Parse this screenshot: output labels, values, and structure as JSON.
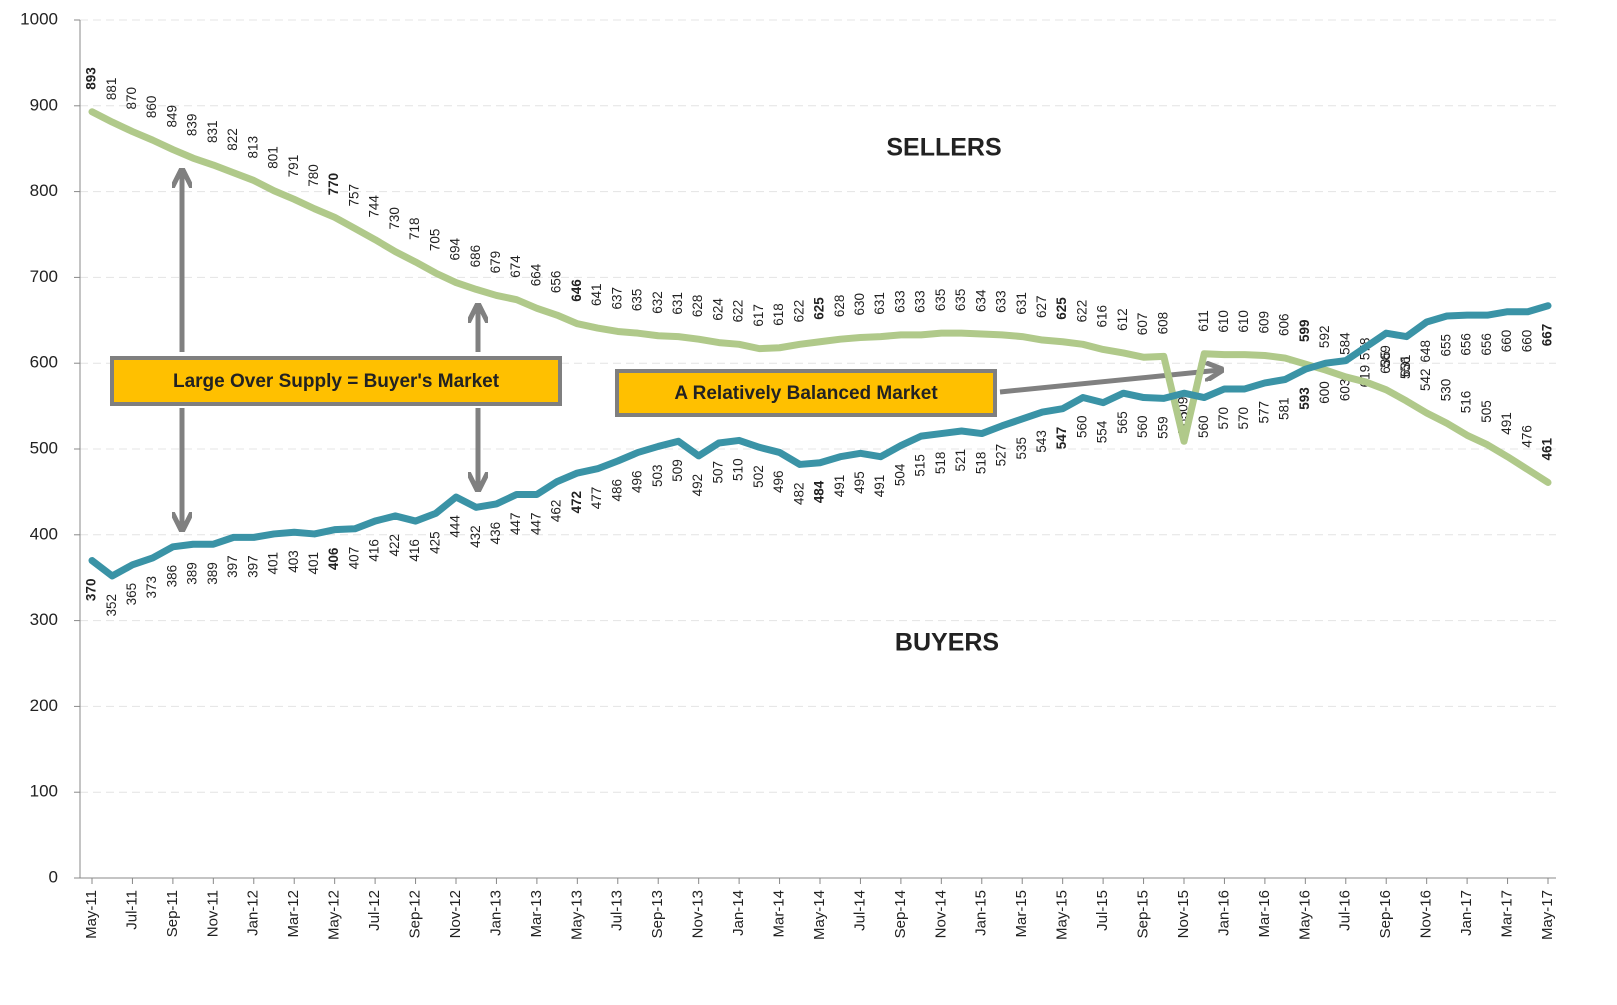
{
  "chart_data": {
    "type": "line",
    "categories": [
      "May-11",
      null,
      "Jul-11",
      null,
      "Sep-11",
      null,
      "Nov-11",
      null,
      "Jan-12",
      null,
      "Mar-12",
      null,
      "May-12",
      null,
      "Jul-12",
      null,
      "Sep-12",
      null,
      "Nov-12",
      null,
      "Jan-13",
      null,
      "Mar-13",
      null,
      "May-13",
      null,
      "Jul-13",
      null,
      "Sep-13",
      null,
      "Nov-13",
      null,
      "Jan-14",
      null,
      "Mar-14",
      null,
      "May-14",
      null,
      "Jul-14",
      null,
      "Sep-14",
      null,
      "Nov-14",
      null,
      "Jan-15",
      null,
      "Mar-15",
      null,
      "May-15",
      null,
      "Jul-15",
      null,
      "Sep-15",
      null,
      "Nov-15",
      null,
      "Jan-16",
      null,
      "Mar-16",
      null,
      "May-16",
      null,
      "Jul-16",
      null,
      "Sep-16",
      null,
      "Nov-16",
      null,
      "Jan-17",
      null,
      "Mar-17",
      null,
      "May-17"
    ],
    "series": [
      {
        "name": "SELLERS",
        "color": "#9bbb59",
        "line_color": "#b0c98a",
        "values": [
          893,
          881,
          870,
          860,
          849,
          839,
          831,
          822,
          813,
          801,
          791,
          780,
          770,
          757,
          744,
          730,
          718,
          705,
          694,
          686,
          679,
          674,
          664,
          656,
          646,
          641,
          637,
          635,
          632,
          631,
          628,
          624,
          622,
          617,
          618,
          622,
          625,
          628,
          630,
          631,
          633,
          633,
          635,
          635,
          634,
          633,
          631,
          627,
          625,
          622,
          616,
          612,
          607,
          608,
          509,
          611,
          610,
          610,
          609,
          606,
          599,
          592,
          584,
          578,
          569,
          556,
          542,
          530,
          516,
          505,
          491,
          476,
          461
        ]
      },
      {
        "name": "BUYERS",
        "color": "#31859c",
        "line_color": "#3a93a6",
        "values": [
          370,
          352,
          365,
          373,
          386,
          389,
          389,
          397,
          397,
          401,
          403,
          401,
          406,
          407,
          416,
          422,
          416,
          425,
          444,
          432,
          436,
          447,
          447,
          462,
          472,
          477,
          486,
          496,
          503,
          509,
          492,
          507,
          510,
          502,
          496,
          482,
          484,
          491,
          495,
          491,
          504,
          515,
          518,
          521,
          518,
          527,
          535,
          543,
          547,
          560,
          554,
          565,
          560,
          559,
          565,
          560,
          570,
          570,
          577,
          581,
          593,
          600,
          603,
          619,
          635,
          631,
          648,
          655,
          656,
          656,
          660,
          660,
          667
        ]
      }
    ],
    "highlight_color": "#c0262c",
    "annotations": [
      "Large Over Supply = Buyer's Market",
      "A Relatively Balanced Market"
    ],
    "annotation_color": "#ffc000",
    "ylim": [
      0,
      1000
    ],
    "yticks": [
      0,
      100,
      200,
      300,
      400,
      500,
      600,
      700,
      800,
      900,
      1000
    ],
    "grid": true
  }
}
